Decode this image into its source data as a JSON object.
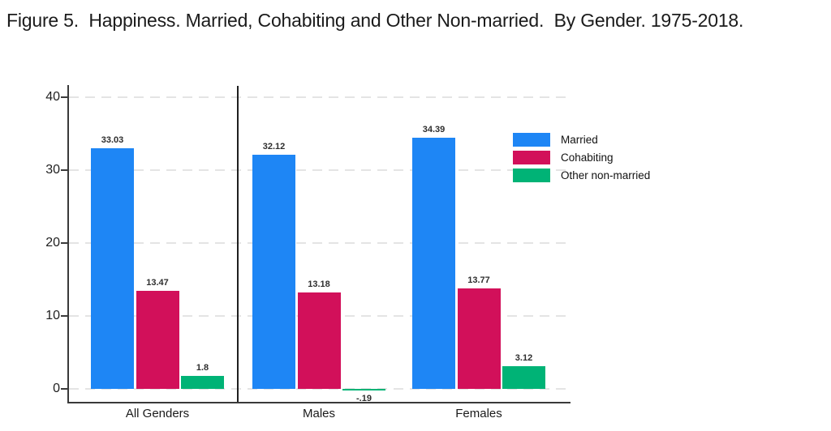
{
  "title": "Figure 5.  Happiness. Married, Cohabiting and Other Non-married.  By Gender. 1975-2018.",
  "colors": {
    "married": "#1E86F5",
    "cohabiting": "#D2105A",
    "other_non_married": "#00B376",
    "axis": "#3a3a3a",
    "grid": "#e4e4e4",
    "separator": "#1f1f1f"
  },
  "legend": {
    "items": [
      {
        "label": "Married"
      },
      {
        "label": "Cohabiting"
      },
      {
        "label": "Other non-married"
      }
    ]
  },
  "chart_data": {
    "type": "bar",
    "title": "Figure 5.  Happiness. Married, Cohabiting and Other Non-married.  By Gender. 1975-2018.",
    "categories": [
      "All Genders",
      "Males",
      "Females"
    ],
    "series": [
      {
        "name": "Married",
        "color": "#1E86F5",
        "values": [
          33.03,
          32.12,
          34.39
        ],
        "labels": [
          "33.03",
          "32.12",
          "34.39"
        ]
      },
      {
        "name": "Cohabiting",
        "color": "#D2105A",
        "values": [
          13.47,
          13.18,
          13.77
        ],
        "labels": [
          "13.47",
          "13.18",
          "13.77"
        ]
      },
      {
        "name": "Other non-married",
        "color": "#00B376",
        "values": [
          1.8,
          -0.19,
          3.12
        ],
        "labels": [
          "1.8",
          "-.19",
          "3.12"
        ]
      }
    ],
    "xlabel": "",
    "ylabel": "",
    "y_ticks": [
      0,
      10,
      20,
      30,
      40
    ],
    "ylim": [
      -2,
      41.5
    ],
    "grid": "horizontal dashed",
    "legend_position": "upper right",
    "group_separator_after": "All Genders"
  }
}
